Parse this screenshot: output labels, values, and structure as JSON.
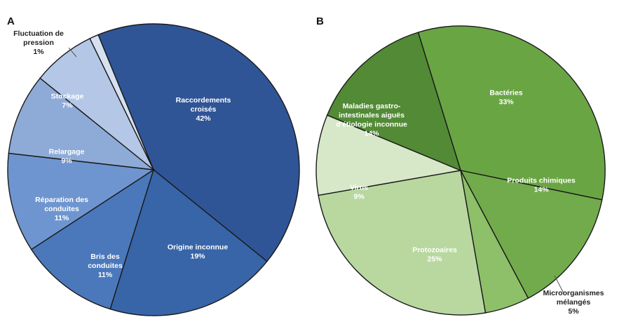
{
  "chart_data": [
    {
      "type": "pie",
      "panel": "A",
      "start_angle_deg": 112.3,
      "direction": "clockwise",
      "slices": [
        {
          "name": "Raccordements croisés",
          "lines": [
            "Raccordements",
            "croisés"
          ],
          "value": 42,
          "pct_label": "42%",
          "color": "#2f5597"
        },
        {
          "name": "Origine inconnue",
          "lines": [
            "Origine inconnue"
          ],
          "value": 19,
          "pct_label": "19%",
          "color": "#3865a8"
        },
        {
          "name": "Bris des conduites",
          "lines": [
            "Bris des",
            "conduites"
          ],
          "value": 11,
          "pct_label": "11%",
          "color": "#4a78bb"
        },
        {
          "name": "Réparation des conduites",
          "lines": [
            "Réparation des",
            "conduites"
          ],
          "value": 11,
          "pct_label": "11%",
          "color": "#6e95cf"
        },
        {
          "name": "Relargage",
          "lines": [
            "Relargage"
          ],
          "value": 9,
          "pct_label": "9%",
          "color": "#8eabd8"
        },
        {
          "name": "Stockage",
          "lines": [
            "Stockage"
          ],
          "value": 7,
          "pct_label": "7%",
          "color": "#b4c7e7"
        },
        {
          "name": "Fluctuation de pression",
          "lines": [
            "Fluctuation de",
            "pression"
          ],
          "value": 1,
          "pct_label": "1%",
          "color": "#d6e0f1",
          "outside_label": true
        }
      ]
    },
    {
      "type": "pie",
      "panel": "B",
      "start_angle_deg": 107.1,
      "direction": "clockwise",
      "slices": [
        {
          "name": "Bactéries",
          "lines": [
            "Bactéries"
          ],
          "value": 33,
          "pct_label": "33%",
          "color": "#6aa544"
        },
        {
          "name": "Produits chimiques",
          "lines": [
            "Produits chimiques"
          ],
          "value": 14,
          "pct_label": "14%",
          "color": "#72ab4c"
        },
        {
          "name": "Microorganismes mélangés",
          "lines": [
            "Microorganismes",
            "mélangés"
          ],
          "value": 5,
          "pct_label": "5%",
          "color": "#8dc069",
          "outside_label": true
        },
        {
          "name": "Protozoaires",
          "lines": [
            "Protozoaires"
          ],
          "value": 25,
          "pct_label": "25%",
          "color": "#b9d8a0"
        },
        {
          "name": "Virus",
          "lines": [
            "Virus"
          ],
          "value": 9,
          "pct_label": "9%",
          "color": "#d6e8c8"
        },
        {
          "name": "Maladies gastro-intestinales aiguës d'étiologie inconnue",
          "lines": [
            "Maladies gastro-",
            "intestinales aiguës",
            "d'étiologie inconnue"
          ],
          "value": 14,
          "pct_label": "14%",
          "color": "#528a35"
        }
      ]
    }
  ]
}
